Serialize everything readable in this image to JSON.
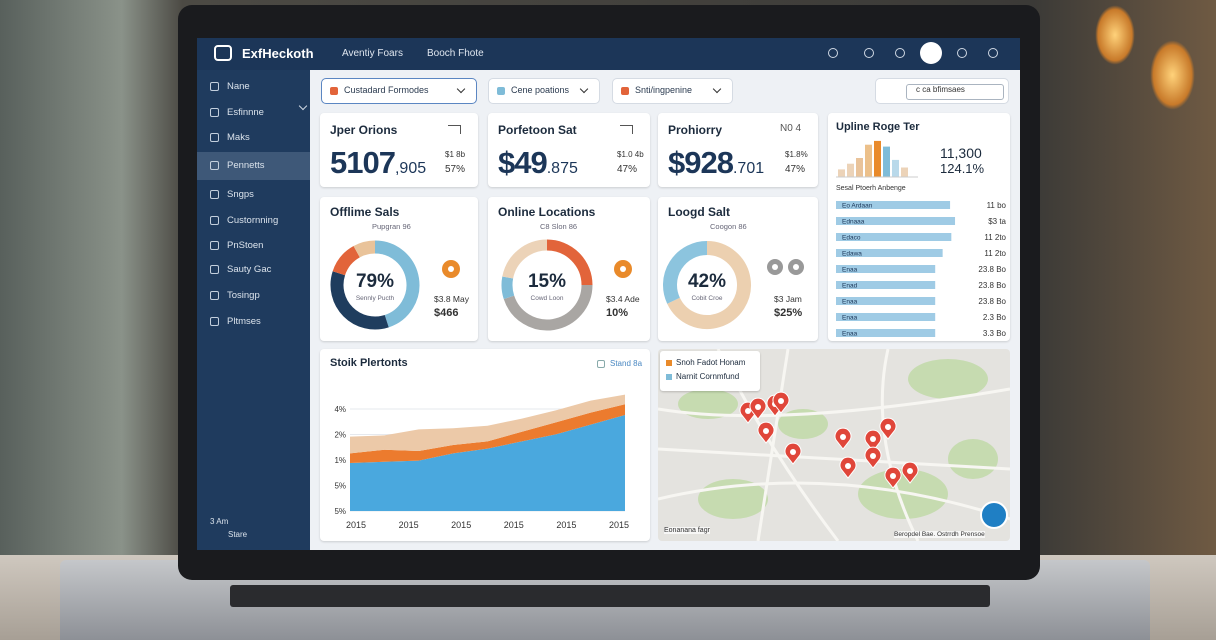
{
  "header": {
    "brand": "ExfHeckoth",
    "nav": [
      "Aventiy Foars",
      "Booch Fhote"
    ]
  },
  "sidebar": {
    "items": [
      "Nane",
      "Esfinnne",
      "Maks",
      "Pennetts",
      "Sngps",
      "Custornning",
      "PnStoen",
      "Sauty Gac",
      "Tosingp",
      "Pltmses"
    ],
    "active": 3,
    "footer": [
      "3 Am",
      "Stare"
    ]
  },
  "filters": {
    "dropdowns": [
      "Custadard Formodes",
      "Cene poations",
      "Snti/ingpenine"
    ],
    "search": "c ca bfimsaes"
  },
  "kpis": [
    {
      "title": "Jper Orions",
      "value": "5107",
      "suffix": ",905",
      "delta": "$1 8b",
      "percent": "57%"
    },
    {
      "title": "Porfetoon Sat",
      "value": "$49",
      "suffix": ".875",
      "delta": "$1.0 4b",
      "percent": "47%"
    },
    {
      "title": "Prohiorry",
      "value": "$928",
      "suffix": ".701",
      "delta": "$1.8%",
      "percent": "47%",
      "badge": "N0 4"
    }
  ],
  "donuts": [
    {
      "title": "Offlime Sals",
      "subtitle": "Pupgran 96",
      "center": "79%",
      "caption": "Sennly Pucth",
      "side": [
        "$3.8 May",
        "$466"
      ],
      "segments": [
        {
          "value": 45,
          "color": "#7fbcd8"
        },
        {
          "value": 35,
          "color": "#1f3d5e"
        },
        {
          "value": 12,
          "color": "#e2643a"
        },
        {
          "value": 8,
          "color": "#e9c39a"
        }
      ]
    },
    {
      "title": "Online Locations",
      "subtitle": "C8 Slon 86",
      "center": "15%",
      "caption": "Cowd Loon",
      "side": [
        "$3.4 Ade",
        "10%"
      ],
      "segments": [
        {
          "value": 25,
          "color": "#e2643a"
        },
        {
          "value": 45,
          "color": "#a9a6a3"
        },
        {
          "value": 8,
          "color": "#7fbcd8"
        },
        {
          "value": 22,
          "color": "#ecd3b8"
        }
      ]
    },
    {
      "title": "Loogd Salt",
      "subtitle": "Coogon 86",
      "center": "42%",
      "caption": "Cobit Croe",
      "side": [
        "$3 Jam",
        "$25%"
      ],
      "segments": [
        {
          "value": 68,
          "color": "#ecd0b0"
        },
        {
          "value": 32,
          "color": "#8cc4de"
        }
      ]
    }
  ],
  "ranking": {
    "title": "Upline Roge Ter",
    "value": "11,300",
    "percent": "124.1%",
    "mini_bars": [
      20,
      35,
      50,
      85,
      95,
      80,
      45,
      25
    ],
    "subtitle": "Sesal Ptoerh Anbenge",
    "rows": [
      {
        "label": "Eo Ardaan",
        "amount": "11 bo",
        "fill": 92
      },
      {
        "label": "Ednaaa",
        "amount": "$3 ta",
        "fill": 96
      },
      {
        "label": "Edaco",
        "amount": "11 2to",
        "fill": 93
      },
      {
        "label": "Edawa",
        "amount": "11 2to",
        "fill": 86
      },
      {
        "label": "Enaa",
        "amount": "23.8 Bo",
        "fill": 80
      },
      {
        "label": "Enad",
        "amount": "23.8 Bo",
        "fill": 80
      },
      {
        "label": "Enaa",
        "amount": "23.8 Bo",
        "fill": 80
      },
      {
        "label": "Enaa",
        "amount": "2.3 Bo",
        "fill": 80
      },
      {
        "label": "Enaa",
        "amount": "3.3 Bo",
        "fill": 80
      }
    ]
  },
  "area_chart": {
    "title": "Stoik Plertonts",
    "legend": "Stand 8a",
    "y_labels": [
      "4%",
      "2%",
      "1%",
      "5%",
      "5%"
    ],
    "x_labels": [
      "2015",
      "2015",
      "2015",
      "2015",
      "2015",
      "2015"
    ],
    "ylim": [
      0,
      100
    ],
    "series": [
      {
        "color": "#4aa8de",
        "values": [
          40,
          41,
          42,
          48,
          52,
          58,
          64,
          72,
          80
        ]
      },
      {
        "color": "#ec7b2e",
        "values": [
          8,
          10,
          8,
          7,
          6,
          8,
          10,
          10,
          9
        ]
      },
      {
        "color": "#ecc9a8",
        "values": [
          14,
          12,
          18,
          14,
          13,
          11,
          10,
          10,
          8
        ]
      }
    ]
  },
  "map": {
    "legend": [
      "Snoh Fadot Honam",
      "Narnit Cornmfund"
    ],
    "attribution": [
      "Eonanana fagr",
      "Beropdel Bae. Ostrrdh Prensoe"
    ]
  }
}
